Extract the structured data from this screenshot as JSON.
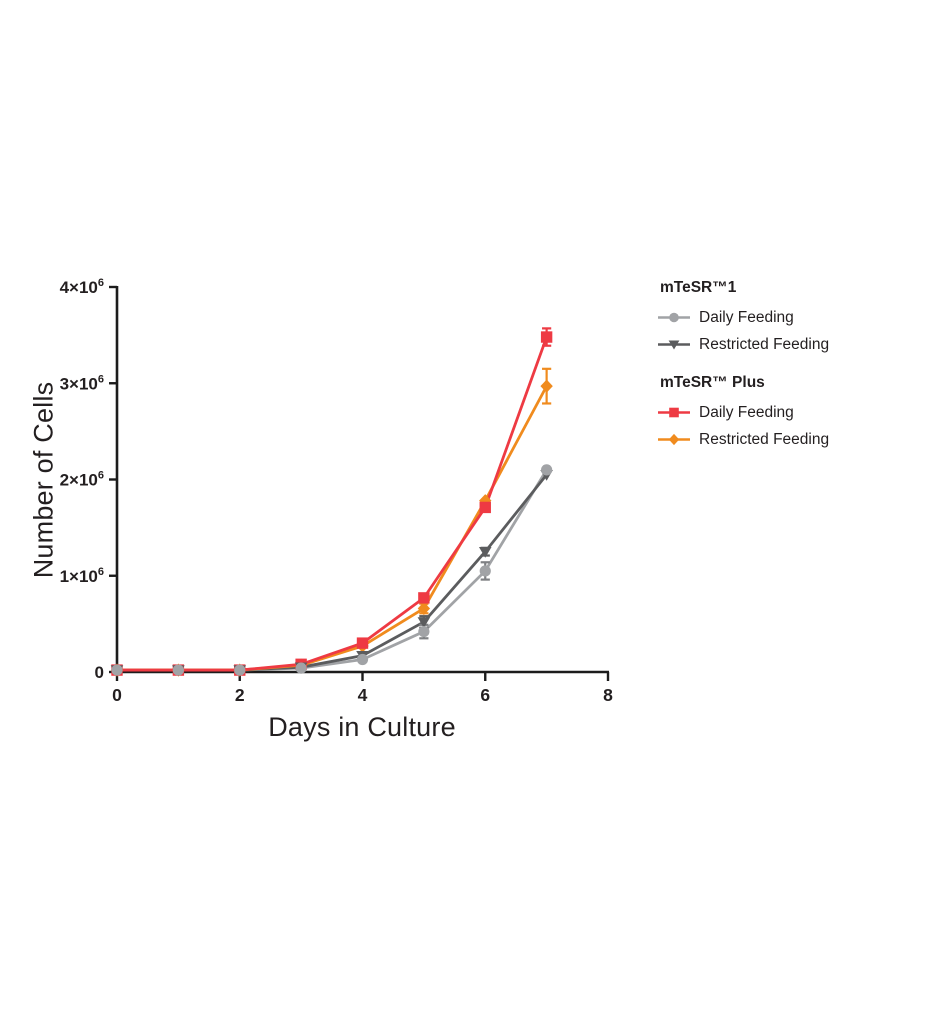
{
  "figure": {
    "background": "#ffffff",
    "text_color": "#231f20",
    "axis_color": "#1c1c1c"
  },
  "chart_data": {
    "type": "line",
    "title": "",
    "xlabel": "Days in Culture",
    "ylabel": "Number of Cells",
    "x": [
      0,
      1,
      2,
      3,
      4,
      5,
      6,
      7
    ],
    "xlim": [
      0,
      8
    ],
    "ylim": [
      0,
      4000000
    ],
    "grid": false,
    "legend_position": "right",
    "x_ticks": [
      0,
      2,
      4,
      6,
      8
    ],
    "y_ticks": [
      {
        "value": 0,
        "label": "0",
        "sup": ""
      },
      {
        "value": 1000000,
        "label": "1×10",
        "sup": "6"
      },
      {
        "value": 2000000,
        "label": "2×10",
        "sup": "6"
      },
      {
        "value": 3000000,
        "label": "3×10",
        "sup": "6"
      },
      {
        "value": 4000000,
        "label": "4×10",
        "sup": "6"
      }
    ],
    "series": [
      {
        "name": "mTeSR™1 Daily Feeding",
        "group": "mTeSR™1",
        "label": "Daily Feeding",
        "color": "#a1a3a6",
        "error_color": "#7f8184",
        "marker": "circle",
        "values": [
          20000,
          20000,
          20000,
          40000,
          130000,
          420000,
          1050000,
          2100000
        ],
        "errors": [
          0,
          0,
          0,
          0,
          0,
          70000,
          90000,
          0
        ]
      },
      {
        "name": "mTeSR™1 Restricted Feeding",
        "group": "mTeSR™1",
        "label": "Restricted Feeding",
        "color": "#5b5c5e",
        "error_color": "#5b5c5e",
        "marker": "triangle-down",
        "values": [
          20000,
          20000,
          20000,
          50000,
          170000,
          520000,
          1250000,
          2050000
        ],
        "errors": [
          0,
          0,
          0,
          0,
          0,
          60000,
          40000,
          0
        ]
      },
      {
        "name": "mTeSR™ Plus Daily Feeding",
        "group": "mTeSR™ Plus",
        "label": "Daily Feeding",
        "color": "#ee3a43",
        "error_color": "#ee3a43",
        "marker": "square",
        "values": [
          20000,
          20000,
          20000,
          80000,
          300000,
          770000,
          1710000,
          3480000
        ],
        "errors": [
          0,
          0,
          0,
          0,
          0,
          0,
          0,
          90000
        ]
      },
      {
        "name": "mTeSR™ Plus Restricted Feeding",
        "group": "mTeSR™ Plus",
        "label": "Restricted Feeding",
        "color": "#f08b1e",
        "error_color": "#f08b1e",
        "marker": "diamond",
        "values": [
          20000,
          20000,
          20000,
          70000,
          270000,
          660000,
          1780000,
          2970000
        ],
        "errors": [
          0,
          0,
          0,
          0,
          0,
          50000,
          0,
          180000
        ]
      }
    ]
  },
  "legend": {
    "groups": [
      {
        "title": "mTeSR™1",
        "items": [
          {
            "label": "Daily Feeding",
            "series": 0
          },
          {
            "label": "Restricted Feeding",
            "series": 1
          }
        ]
      },
      {
        "title": "mTeSR™ Plus",
        "items": [
          {
            "label": "Daily Feeding",
            "series": 2
          },
          {
            "label": "Restricted Feeding",
            "series": 3
          }
        ]
      }
    ]
  }
}
